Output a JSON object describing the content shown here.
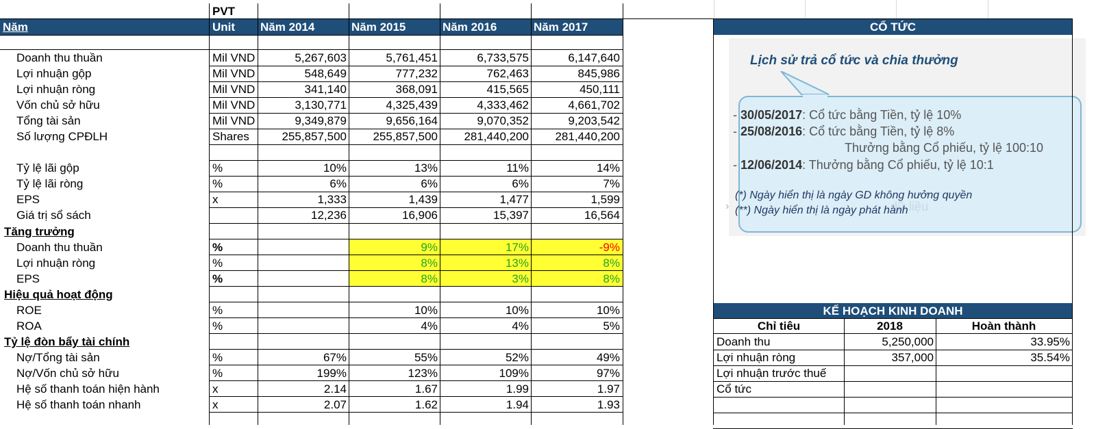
{
  "ticker": "PVT",
  "header": {
    "year_label": "Năm",
    "unit_label": "Unit",
    "years": [
      "Năm 2014",
      "Năm 2015",
      "Năm 2016",
      "Năm 2017"
    ]
  },
  "rows": [
    {
      "label": "Doanh thu thuần",
      "unit": "Mil VND",
      "v": [
        "5,267,603",
        "5,761,451",
        "6,733,575",
        "6,147,640"
      ]
    },
    {
      "label": "Lợi nhuận gộp",
      "unit": "Mil VND",
      "v": [
        "548,649",
        "777,232",
        "762,463",
        "845,986"
      ]
    },
    {
      "label": "Lợi nhuận ròng",
      "unit": "Mil VND",
      "v": [
        "341,140",
        "368,091",
        "415,565",
        "450,111"
      ]
    },
    {
      "label": "Vốn chủ sở hữu",
      "unit": "Mil VND",
      "v": [
        "3,130,771",
        "4,325,439",
        "4,333,462",
        "4,661,702"
      ]
    },
    {
      "label": "Tổng tài sản",
      "unit": "Mil VND",
      "v": [
        "9,349,879",
        "9,656,164",
        "9,070,352",
        "9,203,542"
      ]
    },
    {
      "label": "Số lượng CPĐLH",
      "unit": "Shares",
      "v": [
        "255,857,500",
        "255,857,500",
        "281,440,200",
        "281,440,200"
      ]
    },
    {
      "label": "Tỷ lệ lãi gộp",
      "unit": "%",
      "v": [
        "10%",
        "13%",
        "11%",
        "14%"
      ]
    },
    {
      "label": "Tỷ lệ lãi ròng",
      "unit": "%",
      "v": [
        "6%",
        "6%",
        "6%",
        "7%"
      ]
    },
    {
      "label": "EPS",
      "unit": "x",
      "v": [
        "1,333",
        "1,439",
        "1,477",
        "1,599"
      ]
    },
    {
      "label": "Giá trị sổ sách",
      "unit": "",
      "v": [
        "12,236",
        "16,906",
        "15,397",
        "16,564"
      ]
    },
    {
      "label": "Doanh thu thuần",
      "unit": "%",
      "v": [
        "",
        "9%",
        "17%",
        "-9%"
      ]
    },
    {
      "label": "Lợi nhuận ròng",
      "unit": "%",
      "v": [
        "",
        "8%",
        "13%",
        "8%"
      ]
    },
    {
      "label": "EPS",
      "unit": "%",
      "v": [
        "",
        "8%",
        "3%",
        "8%"
      ]
    },
    {
      "label": "ROE",
      "unit": "%",
      "v": [
        "",
        "10%",
        "10%",
        "10%"
      ]
    },
    {
      "label": "ROA",
      "unit": "%",
      "v": [
        "",
        "4%",
        "4%",
        "5%"
      ]
    },
    {
      "label": "Nợ/Tổng tài sản",
      "unit": "%",
      "v": [
        "67%",
        "55%",
        "52%",
        "49%"
      ]
    },
    {
      "label": "Nợ/Vốn chủ sở hữu",
      "unit": "%",
      "v": [
        "199%",
        "123%",
        "109%",
        "97%"
      ]
    },
    {
      "label": "Hệ số thanh toán hiện hành",
      "unit": "x",
      "v": [
        "2.14",
        "1.67",
        "1.99",
        "1.97"
      ]
    },
    {
      "label": "Hệ số thanh toán nhanh",
      "unit": "x",
      "v": [
        "2.07",
        "1.62",
        "1.94",
        "1.93"
      ]
    }
  ],
  "sections": {
    "growth": "Tăng trưởng",
    "efficiency": "Hiệu quả hoạt động",
    "leverage": "Tỷ lệ đòn bẩy tài chính"
  },
  "dividend": {
    "title": "CỔ TỨC",
    "bubble_title": "Lịch sử trả cổ tức và chia thưởng",
    "items": [
      {
        "date": "30/05/2017",
        "text": ": Cổ tức bằng Tiền, tỷ lệ 10%"
      },
      {
        "date": "25/08/2016",
        "text": ": Cổ tức bằng Tiền, tỷ lệ 8%"
      },
      {
        "date": "",
        "text": "Thưởng bằng Cổ phiếu, tỷ lệ 100:10"
      },
      {
        "date": "12/06/2014",
        "text": ": Thưởng bằng Cổ phiếu, tỷ lệ 10:1"
      }
    ],
    "note1": "(*) Ngày hiển thị là ngày GD không hưởng quyền",
    "note2": "(**) Ngày hiển thị là ngày phát hành",
    "watermark": "dữ liệu"
  },
  "plan": {
    "title": "KẾ HOẠCH KINH DOANH",
    "headers": [
      "Chỉ tiêu",
      "2018",
      "Hoàn thành"
    ],
    "rows": [
      {
        "label": "Doanh thu",
        "value": "5,250,000",
        "done": "33.95%"
      },
      {
        "label": "Lợi nhuận ròng",
        "value": "357,000",
        "done": "35.54%"
      },
      {
        "label": "Lợi nhuận trước thuế",
        "value": "",
        "done": ""
      },
      {
        "label": "Cổ tức",
        "value": "",
        "done": ""
      }
    ]
  },
  "colors": {
    "header_bg": "#1f4e79",
    "highlight": "#ffff33",
    "positive": "#22a32a",
    "negative": "#ff0000"
  }
}
